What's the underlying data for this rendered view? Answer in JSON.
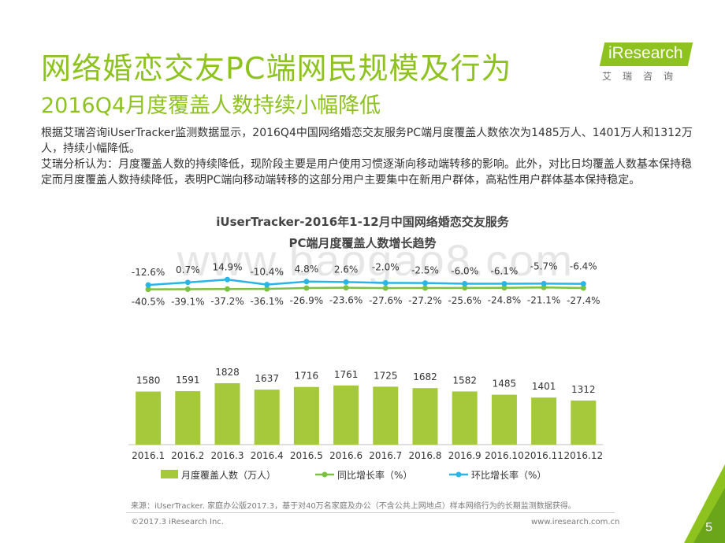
{
  "slide": {
    "title": "网络婚恋交友PC端网民规模及行为",
    "subtitle": "2016Q4月度覆盖人数持续小幅降低",
    "logo_text": "iResearch",
    "logo_sub": "艾瑞咨询",
    "paragraph1": "根据艾瑞咨询iUserTracker监测数据显示，2016Q4中国网络婚恋交友服务PC端月度覆盖人数依次为1485万人、1401万人和1312万人，持续小幅降低。",
    "paragraph2": "艾瑞分析认为：月度覆盖人数的持续降低，现阶段主要是用户使用习惯逐渐向移动端转移的影响。此外，对比日均覆盖人数基本保持稳定而月度覆盖人数持续降低，表明PC端向移动端转移的这部分用户主要集中在新用户群体，高粘性用户群体基本保持稳定。",
    "chart_title_line1": "iUserTracker-2016年1-12月中国网络婚恋交友服务",
    "chart_title_line2": "PC端月度覆盖人数增长趋势",
    "watermark": "www.baogao8.com",
    "source": "来源：iUserTracker. 家庭办公版2017.3，基于对40万名家庭及办公（不含公共上网地点）样本网络行为的长期监测数据获得。",
    "copyright": "©2017.3 iResearch Inc.",
    "website": "www.iresearch.com.cn",
    "page_number": "5"
  },
  "colors": {
    "accent": "#8dc21f",
    "bar": "#a5c93a",
    "yoy_line": "#7cc142",
    "mom_line": "#29b6e6"
  },
  "chart_data": {
    "type": "bar",
    "categories": [
      "2016.1",
      "2016.2",
      "2016.3",
      "2016.4",
      "2016.5",
      "2016.6",
      "2016.7",
      "2016.8",
      "2016.9",
      "2016.10",
      "2016.11",
      "2016.12"
    ],
    "series": [
      {
        "name": "月度覆盖人数（万人）",
        "type": "bar",
        "values": [
          1580,
          1591,
          1828,
          1637,
          1716,
          1761,
          1725,
          1682,
          1582,
          1485,
          1401,
          1312
        ]
      },
      {
        "name": "同比增长率（%）",
        "type": "line",
        "values": [
          -40.5,
          -39.1,
          -37.2,
          -36.1,
          -26.9,
          -23.6,
          -27.6,
          -27.2,
          -25.6,
          -24.8,
          -21.1,
          -27.4
        ],
        "labels": [
          "-40.5%",
          "-39.1%",
          "-37.2%",
          "-36.1%",
          "-26.9%",
          "-23.6%",
          "-27.6%",
          "-27.2%",
          "-25.6%",
          "-24.8%",
          "-21.1%",
          "-27.4%"
        ]
      },
      {
        "name": "环比增长率（%）",
        "type": "line",
        "values": [
          -12.6,
          0.7,
          14.9,
          -10.4,
          4.8,
          2.6,
          -2.0,
          -2.5,
          -6.0,
          -6.1,
          -5.7,
          -6.4
        ],
        "labels": [
          "-12.6%",
          "0.7%",
          "14.9%",
          "-10.4%",
          "4.8%",
          "2.6%",
          "-2.0%",
          "-2.5%",
          "-6.0%",
          "-6.1%",
          "-5.7%",
          "-6.4%"
        ]
      }
    ],
    "legend_position": "bottom",
    "grid": false
  }
}
